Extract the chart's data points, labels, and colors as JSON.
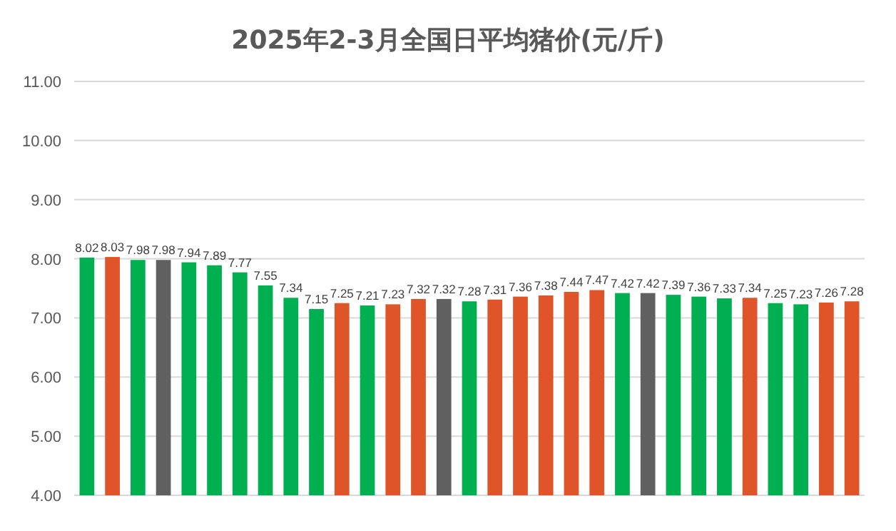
{
  "chart_data": {
    "type": "bar",
    "title": "2025年2-3月全国日平均猪价(元/斤)",
    "categories": [
      null,
      null,
      null,
      null,
      null,
      null,
      null,
      null,
      null,
      null,
      null,
      null,
      null,
      null,
      null,
      null,
      null,
      null,
      null,
      null,
      null,
      null,
      null,
      null,
      null,
      null,
      null,
      null,
      null,
      null,
      null
    ],
    "values": [
      8.02,
      8.03,
      7.98,
      7.98,
      7.94,
      7.89,
      7.77,
      7.55,
      7.34,
      7.15,
      7.25,
      7.21,
      7.23,
      7.32,
      7.32,
      7.28,
      7.31,
      7.36,
      7.38,
      7.44,
      7.47,
      7.42,
      7.42,
      7.39,
      7.36,
      7.33,
      7.34,
      7.25,
      7.23,
      7.26,
      7.28
    ],
    "colors": [
      "#00b050",
      "#e0542a",
      "#00b050",
      "#606060",
      "#00b050",
      "#00b050",
      "#00b050",
      "#00b050",
      "#00b050",
      "#00b050",
      "#e0542a",
      "#00b050",
      "#e0542a",
      "#e0542a",
      "#606060",
      "#00b050",
      "#e0542a",
      "#e0542a",
      "#e0542a",
      "#e0542a",
      "#e0542a",
      "#00b050",
      "#606060",
      "#00b050",
      "#00b050",
      "#00b050",
      "#e0542a",
      "#00b050",
      "#00b050",
      "#e0542a",
      "#e0542a"
    ],
    "ylim": [
      4,
      11
    ],
    "yticks": [
      {
        "value": 4,
        "label": "4.00"
      },
      {
        "value": 5,
        "label": "5.00"
      },
      {
        "value": 6,
        "label": "6.00"
      },
      {
        "value": 7,
        "label": "7.00"
      },
      {
        "value": 8,
        "label": "8.00"
      },
      {
        "value": 9,
        "label": "9.00"
      },
      {
        "value": 10,
        "label": "10.00"
      },
      {
        "value": 11,
        "label": "11.00"
      }
    ],
    "grid": "y",
    "data_labels": true
  }
}
